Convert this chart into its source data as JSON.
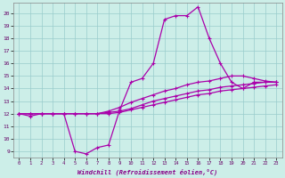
{
  "xlabel": "Windchill (Refroidissement éolien,°C)",
  "x_ticks": [
    0,
    1,
    2,
    3,
    4,
    5,
    6,
    7,
    8,
    9,
    10,
    11,
    12,
    13,
    14,
    15,
    16,
    17,
    18,
    19,
    20,
    21,
    22,
    23
  ],
  "y_ticks": [
    9,
    10,
    11,
    12,
    13,
    14,
    15,
    16,
    17,
    18,
    19,
    20
  ],
  "ylim": [
    8.5,
    20.8
  ],
  "xlim": [
    -0.5,
    23.5
  ],
  "bg_color": "#cceee8",
  "grid_color": "#99cccc",
  "line_color": "#aa00aa",
  "line_width": 0.9,
  "marker": "+",
  "marker_size": 3.5,
  "marker_lw": 0.8,
  "curves": [
    [
      12.0,
      11.8,
      12.0,
      12.0,
      12.0,
      9.0,
      8.8,
      9.3,
      9.5,
      12.3,
      14.5,
      14.8,
      16.0,
      19.5,
      19.8,
      19.8,
      20.5,
      18.0,
      16.0,
      14.5,
      14.0,
      14.5,
      14.5,
      14.5
    ],
    [
      12.0,
      12.0,
      12.0,
      12.0,
      12.0,
      12.0,
      12.0,
      12.0,
      12.0,
      12.1,
      12.3,
      12.5,
      12.7,
      12.9,
      13.1,
      13.3,
      13.5,
      13.6,
      13.8,
      13.9,
      14.0,
      14.1,
      14.2,
      14.3
    ],
    [
      12.0,
      12.0,
      12.0,
      12.0,
      12.0,
      12.0,
      12.0,
      12.0,
      12.1,
      12.2,
      12.4,
      12.7,
      13.0,
      13.2,
      13.4,
      13.6,
      13.8,
      13.9,
      14.1,
      14.2,
      14.3,
      14.4,
      14.5,
      14.5
    ],
    [
      12.0,
      12.0,
      12.0,
      12.0,
      12.0,
      12.0,
      12.0,
      12.0,
      12.2,
      12.5,
      12.9,
      13.2,
      13.5,
      13.8,
      14.0,
      14.3,
      14.5,
      14.6,
      14.8,
      15.0,
      15.0,
      14.8,
      14.6,
      14.5
    ]
  ]
}
